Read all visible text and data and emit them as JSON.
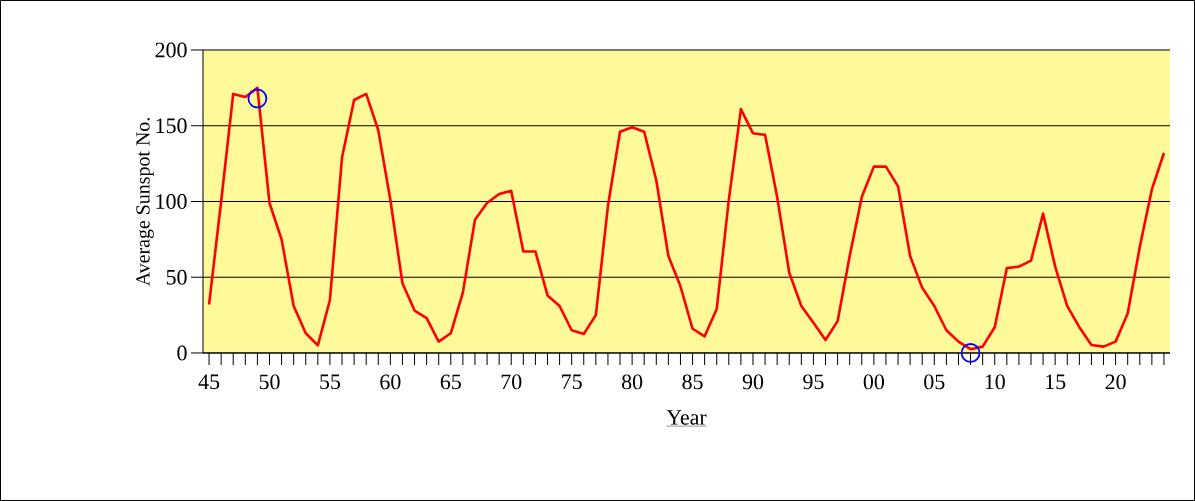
{
  "chart_data": {
    "type": "line",
    "xlabel": "Year",
    "ylabel": "Average Sunspot No.",
    "x": [
      1945,
      1946,
      1947,
      1948,
      1949,
      1950,
      1951,
      1952,
      1953,
      1954,
      1955,
      1956,
      1957,
      1958,
      1959,
      1960,
      1961,
      1962,
      1963,
      1964,
      1965,
      1966,
      1967,
      1968,
      1969,
      1970,
      1971,
      1972,
      1973,
      1974,
      1975,
      1976,
      1977,
      1978,
      1979,
      1980,
      1981,
      1982,
      1983,
      1984,
      1985,
      1986,
      1987,
      1988,
      1989,
      1990,
      1991,
      1992,
      1993,
      1994,
      1995,
      1996,
      1997,
      1998,
      1999,
      2000,
      2001,
      2002,
      2003,
      2004,
      2005,
      2006,
      2007,
      2008,
      2009,
      2010,
      2011,
      2012,
      2013,
      2014,
      2015,
      2016,
      2017,
      2018,
      2019,
      2020,
      2021,
      2022,
      2023,
      2024
    ],
    "series": [
      {
        "color": "#ff0000",
        "marker": "none",
        "values": [
          32,
          100,
          171,
          169,
          175,
          99,
          75,
          31,
          13,
          5,
          35,
          129,
          167,
          171,
          147,
          101,
          46,
          28,
          23,
          7.5,
          13,
          40,
          88,
          99,
          105,
          107,
          67,
          67,
          38,
          31,
          15,
          12.5,
          25,
          97,
          146,
          149,
          146,
          114,
          64,
          44,
          16,
          11,
          29,
          101,
          161,
          145,
          144,
          103,
          53,
          31,
          20,
          8.6,
          21,
          64,
          103,
          123,
          123,
          110,
          64,
          43,
          31,
          15,
          7.5,
          2.5,
          4.2,
          17,
          56,
          57,
          61,
          92,
          57,
          31,
          17,
          5.3,
          4.2,
          7.5,
          26,
          70,
          108,
          132
        ]
      },
      {
        "type": "scatter",
        "color": "#0000ff",
        "marker": "circle",
        "x": [
          1949,
          2008
        ],
        "values": [
          168,
          0
        ]
      }
    ],
    "xlim": [
      1944.5,
      2024.5
    ],
    "ylim": [
      0,
      200
    ],
    "xticks": [
      {
        "value": 1945,
        "label": "45"
      },
      {
        "value": 1946,
        "label": null
      },
      {
        "value": 1947,
        "label": null
      },
      {
        "value": 1948,
        "label": null
      },
      {
        "value": 1949,
        "label": null
      },
      {
        "value": 1950,
        "label": "50"
      },
      {
        "value": 1951,
        "label": null
      },
      {
        "value": 1952,
        "label": null
      },
      {
        "value": 1953,
        "label": null
      },
      {
        "value": 1954,
        "label": null
      },
      {
        "value": 1955,
        "label": "55"
      },
      {
        "value": 1956,
        "label": null
      },
      {
        "value": 1957,
        "label": null
      },
      {
        "value": 1958,
        "label": null
      },
      {
        "value": 1959,
        "label": null
      },
      {
        "value": 1960,
        "label": "60"
      },
      {
        "value": 1961,
        "label": null
      },
      {
        "value": 1962,
        "label": null
      },
      {
        "value": 1963,
        "label": null
      },
      {
        "value": 1964,
        "label": null
      },
      {
        "value": 1965,
        "label": "65"
      },
      {
        "value": 1966,
        "label": null
      },
      {
        "value": 1967,
        "label": null
      },
      {
        "value": 1968,
        "label": null
      },
      {
        "value": 1969,
        "label": null
      },
      {
        "value": 1970,
        "label": "70"
      },
      {
        "value": 1971,
        "label": null
      },
      {
        "value": 1972,
        "label": null
      },
      {
        "value": 1973,
        "label": null
      },
      {
        "value": 1974,
        "label": null
      },
      {
        "value": 1975,
        "label": "75"
      },
      {
        "value": 1976,
        "label": null
      },
      {
        "value": 1977,
        "label": null
      },
      {
        "value": 1978,
        "label": null
      },
      {
        "value": 1979,
        "label": null
      },
      {
        "value": 1980,
        "label": "80"
      },
      {
        "value": 1981,
        "label": null
      },
      {
        "value": 1982,
        "label": null
      },
      {
        "value": 1983,
        "label": null
      },
      {
        "value": 1984,
        "label": null
      },
      {
        "value": 1985,
        "label": "85"
      },
      {
        "value": 1986,
        "label": null
      },
      {
        "value": 1987,
        "label": null
      },
      {
        "value": 1988,
        "label": null
      },
      {
        "value": 1989,
        "label": null
      },
      {
        "value": 1990,
        "label": "90"
      },
      {
        "value": 1991,
        "label": null
      },
      {
        "value": 1992,
        "label": null
      },
      {
        "value": 1993,
        "label": null
      },
      {
        "value": 1994,
        "label": null
      },
      {
        "value": 1995,
        "label": "95"
      },
      {
        "value": 1996,
        "label": null
      },
      {
        "value": 1997,
        "label": null
      },
      {
        "value": 1998,
        "label": null
      },
      {
        "value": 1999,
        "label": null
      },
      {
        "value": 2000,
        "label": "00"
      },
      {
        "value": 2001,
        "label": null
      },
      {
        "value": 2002,
        "label": null
      },
      {
        "value": 2003,
        "label": null
      },
      {
        "value": 2004,
        "label": null
      },
      {
        "value": 2005,
        "label": "05"
      },
      {
        "value": 2006,
        "label": null
      },
      {
        "value": 2007,
        "label": null
      },
      {
        "value": 2008,
        "label": null
      },
      {
        "value": 2009,
        "label": null
      },
      {
        "value": 2010,
        "label": "10"
      },
      {
        "value": 2011,
        "label": null
      },
      {
        "value": 2012,
        "label": null
      },
      {
        "value": 2013,
        "label": null
      },
      {
        "value": 2014,
        "label": null
      },
      {
        "value": 2015,
        "label": "15"
      },
      {
        "value": 2016,
        "label": null
      },
      {
        "value": 2017,
        "label": null
      },
      {
        "value": 2018,
        "label": null
      },
      {
        "value": 2019,
        "label": null
      },
      {
        "value": 2020,
        "label": "20"
      },
      {
        "value": 2021,
        "label": null
      },
      {
        "value": 2022,
        "label": null
      },
      {
        "value": 2023,
        "label": null
      },
      {
        "value": 2024,
        "label": null
      }
    ],
    "yticks": [
      0,
      50,
      100,
      150,
      200
    ],
    "grid": "y"
  }
}
